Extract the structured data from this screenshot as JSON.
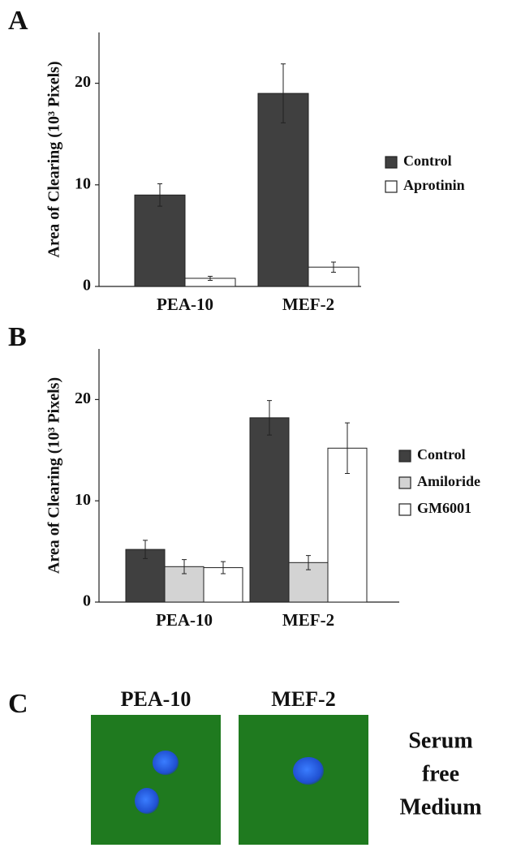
{
  "chart_data": [
    {
      "type": "bar",
      "panel": "A",
      "ylabel": "Area of Clearing (10³ Pixels)",
      "categories": [
        "PEA-10",
        "MEF-2"
      ],
      "series": [
        {
          "name": "Control",
          "color": "#404040",
          "values": [
            9,
            19
          ],
          "errors": [
            1.1,
            2.9
          ]
        },
        {
          "name": "Aprotinin",
          "color": "#ffffff",
          "values": [
            0.8,
            1.9
          ],
          "errors": [
            0.2,
            0.5
          ]
        }
      ],
      "ylim": [
        0,
        25
      ],
      "yticks": [
        0,
        10,
        20
      ]
    },
    {
      "type": "bar",
      "panel": "B",
      "ylabel": "Area of Clearing (10³ Pixels)",
      "categories": [
        "PEA-10",
        "MEF-2"
      ],
      "series": [
        {
          "name": "Control",
          "color": "#404040",
          "values": [
            5.2,
            18.2
          ],
          "errors": [
            0.9,
            1.7
          ]
        },
        {
          "name": "Amiloride",
          "color": "#d3d3d3",
          "values": [
            3.5,
            3.9
          ],
          "errors": [
            0.7,
            0.7
          ]
        },
        {
          "name": "GM6001",
          "color": "#ffffff",
          "values": [
            3.4,
            15.2
          ],
          "errors": [
            0.6,
            2.5
          ]
        }
      ],
      "ylim": [
        0,
        25
      ],
      "yticks": [
        0,
        10,
        20
      ]
    }
  ],
  "panel_c": {
    "panel": "C",
    "labels": [
      "PEA-10",
      "MEF-2"
    ],
    "condition": [
      "Serum",
      "free",
      "Medium"
    ]
  }
}
